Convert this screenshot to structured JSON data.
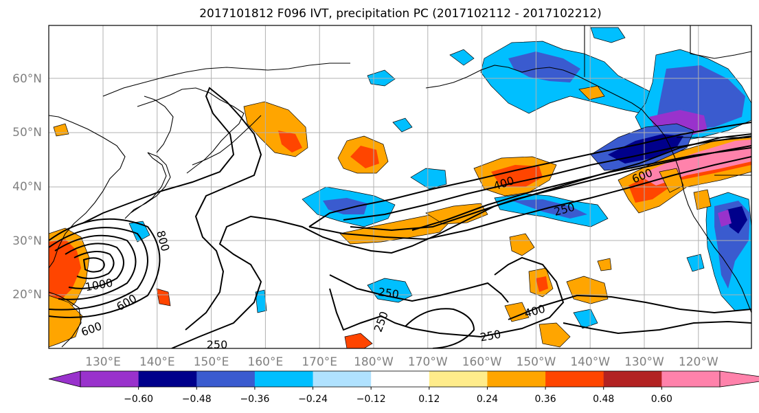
{
  "title": "2017101812 F096 IVT, precipitation PC (2017102112 - 2017102212)",
  "lat_ticks": [
    "60°N",
    "50°N",
    "40°N",
    "30°N",
    "20°N"
  ],
  "lon_ticks": [
    "130°E",
    "140°E",
    "150°E",
    "160°E",
    "170°E",
    "180°W",
    "170°W",
    "160°W",
    "150°W",
    "140°W",
    "130°W",
    "120°W"
  ],
  "ivt_contour_labels": [
    "400",
    "600",
    "250",
    "800",
    "1000",
    "600",
    "600",
    "250",
    "250",
    "400",
    "250",
    "250"
  ],
  "colorbar": {
    "colors": [
      "#9932cc",
      "#00008b",
      "#3a5bcf",
      "#00bfff",
      "#b0e2ff",
      "#ffffff",
      "#ffec8b",
      "#ffa500",
      "#ff4500",
      "#b22222",
      "#ff82ab"
    ],
    "tick_labels": [
      "−0.60",
      "−0.48",
      "−0.36",
      "−0.24",
      "−0.12",
      "0.12",
      "0.24",
      "0.36",
      "0.48",
      "0.60"
    ]
  }
}
